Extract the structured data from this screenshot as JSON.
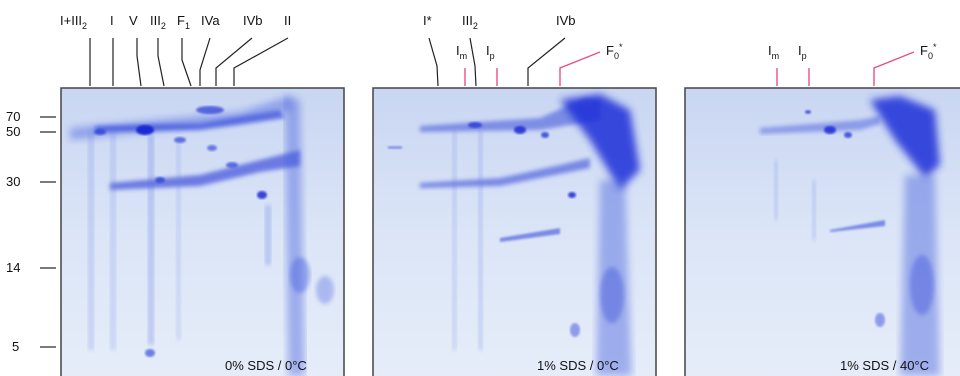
{
  "y_axis": {
    "ticks": [
      "70",
      "50",
      "30",
      "14",
      "5"
    ]
  },
  "panels": [
    {
      "condition": "0% SDS / 0°C",
      "labels": [
        {
          "main": "I+III",
          "sub": "2",
          "color": "black"
        },
        {
          "main": "I",
          "sub": "",
          "color": "black"
        },
        {
          "main": "V",
          "sub": "",
          "color": "black"
        },
        {
          "main": "III",
          "sub": "2",
          "color": "black"
        },
        {
          "main": "F",
          "sub": "1",
          "color": "black"
        },
        {
          "main": "IVa",
          "sub": "",
          "color": "black"
        },
        {
          "main": "IVb",
          "sub": "",
          "color": "black"
        },
        {
          "main": "II",
          "sub": "",
          "color": "black"
        }
      ]
    },
    {
      "condition": "1% SDS / 0°C",
      "labels": [
        {
          "main": "I*",
          "sub": "",
          "color": "black"
        },
        {
          "main": "I",
          "sub": "m",
          "color": "pink"
        },
        {
          "main": "III",
          "sub": "2",
          "color": "black"
        },
        {
          "main": "I",
          "sub": "p",
          "color": "pink"
        },
        {
          "main": "IVb",
          "sub": "",
          "color": "black"
        },
        {
          "main": "F",
          "sub": "0",
          "sup": "*",
          "color": "pink"
        }
      ]
    },
    {
      "condition": "1% SDS / 40°C",
      "labels": [
        {
          "main": "I",
          "sub": "m",
          "color": "pink"
        },
        {
          "main": "I",
          "sub": "p",
          "color": "pink"
        },
        {
          "main": "F",
          "sub": "0",
          "sup": "*",
          "color": "pink"
        }
      ]
    }
  ],
  "colors": {
    "gel_background": "#dbe6f7",
    "protein_spot": "#1e2fd8",
    "pink_leader": "#e8508a"
  }
}
